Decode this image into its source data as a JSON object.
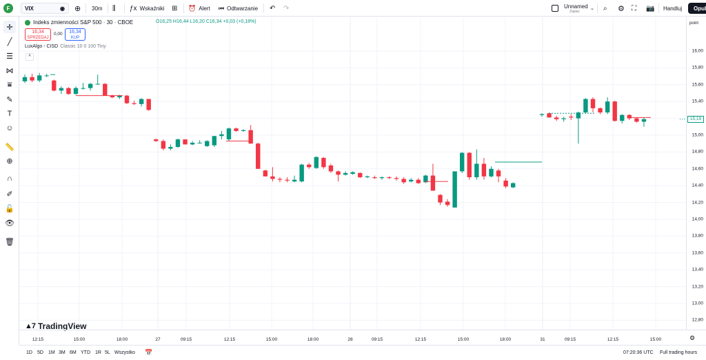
{
  "toolbar": {
    "logo_letter": "F",
    "symbol": "VIX",
    "interval": "30m",
    "indicators_label": "Wskaźniki",
    "alert_label": "Alert",
    "replay_label": "Odtwarzanie",
    "layout_name": "Unnamed",
    "layout_status": "Zapisz",
    "trade_label": "Handluj",
    "publish_label": "Opub"
  },
  "legend": {
    "title": "Indeks zmienności S&P 500 · 30 · CBOE",
    "open": "O16,25",
    "high": "H16,44",
    "low": "L16,20",
    "close": "C16,34",
    "change": "+0,03 (+0,18%)",
    "sell_price": "16,34",
    "sell_label": "SPRZEDAJ",
    "spread": "0,00",
    "buy_price": "16,34",
    "buy_label": "KUP",
    "indicator_name": "LuxAlgo - CISD",
    "indicator_args": "Classic 10 0 100 Tiny",
    "collapse_glyph": "^"
  },
  "price_axis": {
    "mode": "point",
    "ticks": [
      "16,00",
      "15,80",
      "15,60",
      "15,40",
      "15,20",
      "15,00",
      "14,80",
      "14,60",
      "14,40",
      "14,20",
      "14,00",
      "13,80",
      "13,60",
      "13,40",
      "13,20",
      "13,00",
      "12,80"
    ],
    "last_price": "15,19"
  },
  "time_axis": {
    "ticks": [
      "12:15",
      "15:00",
      "18:00",
      "27",
      "09:15",
      "12:15",
      "15:00",
      "18:00",
      "28",
      "09:15",
      "12:15",
      "15:00",
      "18:00",
      "31",
      "09:15",
      "12:15",
      "15:00"
    ]
  },
  "bottom": {
    "ranges": [
      "1D",
      "5D",
      "1M",
      "3M",
      "6M",
      "YTD",
      "1R",
      "5L",
      "Wszystko"
    ],
    "clock": "07:20:36 UTC",
    "session": "Full trading hours"
  },
  "watermark": "TradingView",
  "colors": {
    "up": "#089981",
    "down": "#f23645",
    "accent": "#2962ff"
  },
  "chart_data": {
    "type": "candlestick",
    "ylim": [
      12.7,
      16.2
    ],
    "candles": [
      {
        "o": 15.64,
        "h": 15.72,
        "l": 15.62,
        "c": 15.69
      },
      {
        "o": 15.69,
        "h": 15.73,
        "l": 15.63,
        "c": 15.65
      },
      {
        "o": 15.65,
        "h": 15.74,
        "l": 15.63,
        "c": 15.71
      },
      {
        "o": 15.71,
        "h": 15.73,
        "l": 15.69,
        "c": 15.71
      },
      {
        "o": 15.65,
        "h": 15.66,
        "l": 15.52,
        "c": 15.53
      },
      {
        "o": 15.53,
        "h": 15.58,
        "l": 15.49,
        "c": 15.56
      },
      {
        "o": 15.56,
        "h": 15.57,
        "l": 15.48,
        "c": 15.49
      },
      {
        "o": 15.49,
        "h": 15.58,
        "l": 15.48,
        "c": 15.56
      },
      {
        "o": 15.56,
        "h": 15.62,
        "l": 15.54,
        "c": 15.56
      },
      {
        "o": 15.56,
        "h": 15.62,
        "l": 15.53,
        "c": 15.61
      },
      {
        "o": 15.61,
        "h": 15.72,
        "l": 15.6,
        "c": 15.61
      },
      {
        "o": 15.61,
        "h": 15.62,
        "l": 15.47,
        "c": 15.47
      },
      {
        "o": 15.47,
        "h": 15.48,
        "l": 15.44,
        "c": 15.45
      },
      {
        "o": 15.45,
        "h": 15.48,
        "l": 15.43,
        "c": 15.47
      },
      {
        "o": 15.47,
        "h": 15.48,
        "l": 15.37,
        "c": 15.38
      },
      {
        "o": 15.38,
        "h": 15.41,
        "l": 15.36,
        "c": 15.37
      },
      {
        "o": 15.37,
        "h": 15.44,
        "l": 15.34,
        "c": 15.43
      },
      {
        "o": 15.43,
        "h": 15.43,
        "l": 15.29,
        "c": 15.3
      },
      {
        "o": 14.95,
        "h": 14.96,
        "l": 14.92,
        "c": 14.93
      },
      {
        "o": 14.93,
        "h": 14.95,
        "l": 14.82,
        "c": 14.84
      },
      {
        "o": 14.84,
        "h": 14.89,
        "l": 14.82,
        "c": 14.86
      },
      {
        "o": 14.86,
        "h": 14.96,
        "l": 14.85,
        "c": 14.95
      },
      {
        "o": 14.95,
        "h": 14.95,
        "l": 14.89,
        "c": 14.89
      },
      {
        "o": 14.89,
        "h": 14.93,
        "l": 14.88,
        "c": 14.91
      },
      {
        "o": 14.91,
        "h": 14.94,
        "l": 14.9,
        "c": 14.91
      },
      {
        "o": 14.87,
        "h": 14.94,
        "l": 14.86,
        "c": 14.93
      },
      {
        "o": 14.88,
        "h": 14.99,
        "l": 14.86,
        "c": 14.99
      },
      {
        "o": 14.99,
        "h": 15.05,
        "l": 14.95,
        "c": 15.01
      },
      {
        "o": 14.95,
        "h": 15.09,
        "l": 14.93,
        "c": 15.08
      },
      {
        "o": 15.08,
        "h": 15.09,
        "l": 15.04,
        "c": 15.05
      },
      {
        "o": 15.05,
        "h": 15.07,
        "l": 15.04,
        "c": 15.06
      },
      {
        "o": 15.06,
        "h": 15.12,
        "l": 14.9,
        "c": 14.9
      },
      {
        "o": 14.9,
        "h": 14.91,
        "l": 14.6,
        "c": 14.6
      },
      {
        "o": 14.58,
        "h": 14.59,
        "l": 14.51,
        "c": 14.51
      },
      {
        "o": 14.51,
        "h": 14.62,
        "l": 14.45,
        "c": 14.48
      },
      {
        "o": 14.48,
        "h": 14.5,
        "l": 14.44,
        "c": 14.47
      },
      {
        "o": 14.47,
        "h": 14.5,
        "l": 14.44,
        "c": 14.46
      },
      {
        "o": 14.45,
        "h": 14.52,
        "l": 14.44,
        "c": 14.47
      },
      {
        "o": 14.45,
        "h": 14.66,
        "l": 14.44,
        "c": 14.65
      },
      {
        "o": 14.65,
        "h": 14.67,
        "l": 14.6,
        "c": 14.62
      },
      {
        "o": 14.61,
        "h": 14.75,
        "l": 14.6,
        "c": 14.74
      },
      {
        "o": 14.73,
        "h": 14.74,
        "l": 14.6,
        "c": 14.62
      },
      {
        "o": 14.64,
        "h": 14.66,
        "l": 14.55,
        "c": 14.57
      },
      {
        "o": 14.57,
        "h": 14.58,
        "l": 14.45,
        "c": 14.53
      },
      {
        "o": 14.53,
        "h": 14.57,
        "l": 14.52,
        "c": 14.55
      },
      {
        "o": 14.54,
        "h": 14.57,
        "l": 14.53,
        "c": 14.56
      },
      {
        "o": 14.55,
        "h": 14.56,
        "l": 14.49,
        "c": 14.5
      },
      {
        "o": 14.5,
        "h": 14.52,
        "l": 14.49,
        "c": 14.51
      },
      {
        "o": 14.5,
        "h": 14.52,
        "l": 14.48,
        "c": 14.49
      },
      {
        "o": 14.49,
        "h": 14.51,
        "l": 14.47,
        "c": 14.5
      },
      {
        "o": 14.5,
        "h": 14.51,
        "l": 14.48,
        "c": 14.49
      },
      {
        "o": 14.49,
        "h": 14.51,
        "l": 14.46,
        "c": 14.48
      },
      {
        "o": 14.48,
        "h": 14.5,
        "l": 14.42,
        "c": 14.44
      },
      {
        "o": 14.45,
        "h": 14.49,
        "l": 14.44,
        "c": 14.47
      },
      {
        "o": 14.47,
        "h": 14.49,
        "l": 14.42,
        "c": 14.43
      },
      {
        "o": 14.44,
        "h": 14.53,
        "l": 14.43,
        "c": 14.52
      },
      {
        "o": 14.52,
        "h": 14.66,
        "l": 14.34,
        "c": 14.34
      },
      {
        "o": 14.29,
        "h": 14.3,
        "l": 14.17,
        "c": 14.2
      },
      {
        "o": 14.21,
        "h": 14.24,
        "l": 14.15,
        "c": 14.17
      },
      {
        "o": 14.14,
        "h": 14.57,
        "l": 14.14,
        "c": 14.57
      },
      {
        "o": 14.57,
        "h": 14.8,
        "l": 14.55,
        "c": 14.79
      },
      {
        "o": 14.79,
        "h": 14.8,
        "l": 14.47,
        "c": 14.5
      },
      {
        "o": 14.5,
        "h": 14.83,
        "l": 14.47,
        "c": 14.66
      },
      {
        "o": 14.66,
        "h": 14.73,
        "l": 14.47,
        "c": 14.51
      },
      {
        "o": 14.51,
        "h": 14.63,
        "l": 14.5,
        "c": 14.6
      },
      {
        "o": 14.58,
        "h": 14.6,
        "l": 14.44,
        "c": 14.51
      },
      {
        "o": 14.46,
        "h": 14.49,
        "l": 14.37,
        "c": 14.39
      },
      {
        "o": 14.38,
        "h": 14.44,
        "l": 14.37,
        "c": 14.43
      }
    ],
    "candles_day31": [
      {
        "o": 15.24,
        "h": 15.26,
        "l": 15.22,
        "c": 15.25
      },
      {
        "o": 15.26,
        "h": 15.27,
        "l": 15.21,
        "c": 15.21
      },
      {
        "o": 15.21,
        "h": 15.23,
        "l": 15.17,
        "c": 15.19
      },
      {
        "o": 15.19,
        "h": 15.22,
        "l": 15.16,
        "c": 15.2
      },
      {
        "o": 15.22,
        "h": 15.25,
        "l": 15.18,
        "c": 15.21
      },
      {
        "o": 15.2,
        "h": 15.28,
        "l": 14.9,
        "c": 15.27
      },
      {
        "o": 15.27,
        "h": 15.44,
        "l": 15.26,
        "c": 15.43
      },
      {
        "o": 15.43,
        "h": 15.45,
        "l": 15.27,
        "c": 15.32
      },
      {
        "o": 15.32,
        "h": 15.33,
        "l": 15.25,
        "c": 15.27
      },
      {
        "o": 15.27,
        "h": 15.45,
        "l": 15.25,
        "c": 15.4
      },
      {
        "o": 15.4,
        "h": 15.41,
        "l": 15.16,
        "c": 15.17
      },
      {
        "o": 15.17,
        "h": 15.25,
        "l": 15.14,
        "c": 15.24
      },
      {
        "o": 15.24,
        "h": 15.25,
        "l": 15.18,
        "c": 15.2
      },
      {
        "o": 15.2,
        "h": 15.21,
        "l": 15.15,
        "c": 15.16
      },
      {
        "o": 15.16,
        "h": 15.21,
        "l": 15.1,
        "c": 15.19
      }
    ]
  }
}
